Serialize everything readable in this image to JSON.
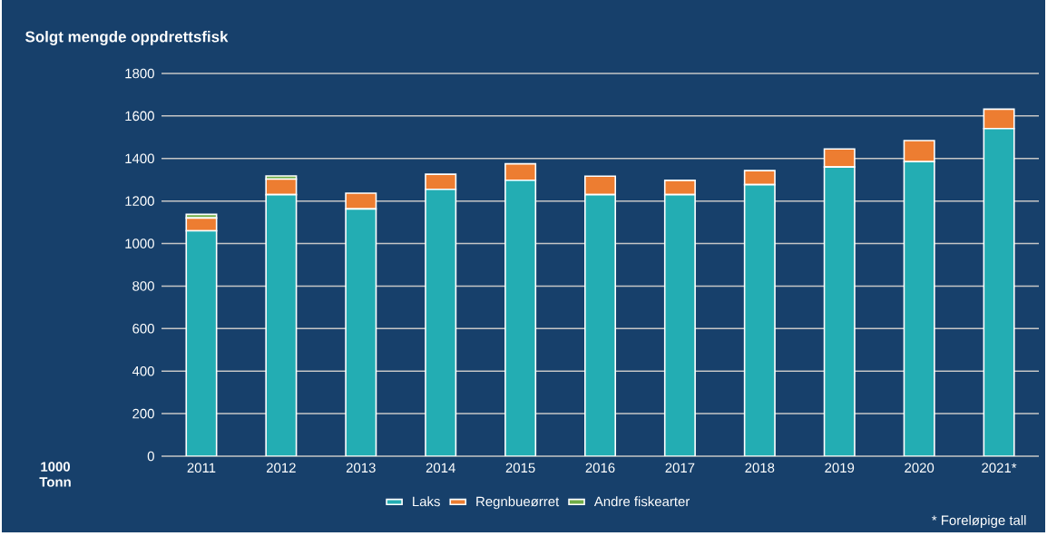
{
  "chart_data": {
    "type": "bar",
    "stacked": true,
    "title": "Solgt mengde oppdrettsfisk",
    "ylabel": "1000 Tonn",
    "categories": [
      "2011",
      "2012",
      "2013",
      "2014",
      "2015",
      "2016",
      "2017",
      "2018",
      "2019",
      "2020",
      "2021*"
    ],
    "series": [
      {
        "name": "Laks",
        "color": "#23adb3",
        "values": [
          1060,
          1230,
          1163,
          1255,
          1298,
          1230,
          1230,
          1277,
          1360,
          1385,
          1541
        ]
      },
      {
        "name": "Regnbueørret",
        "color": "#ed7d31",
        "values": [
          60,
          73,
          74,
          71,
          77,
          87,
          67,
          66,
          85,
          99,
          91
        ]
      },
      {
        "name": "Andre fiskearter",
        "color": "#70ad47",
        "values": [
          17,
          15,
          0,
          0,
          0,
          0,
          0,
          0,
          0,
          0,
          0
        ]
      }
    ],
    "ylim": [
      0,
      1800
    ],
    "yticks": [
      0,
      200,
      400,
      600,
      800,
      1000,
      1200,
      1400,
      1600,
      1800
    ],
    "grid": "y",
    "legend": "bottom",
    "annotations": [
      "* Foreløpige tall"
    ]
  }
}
